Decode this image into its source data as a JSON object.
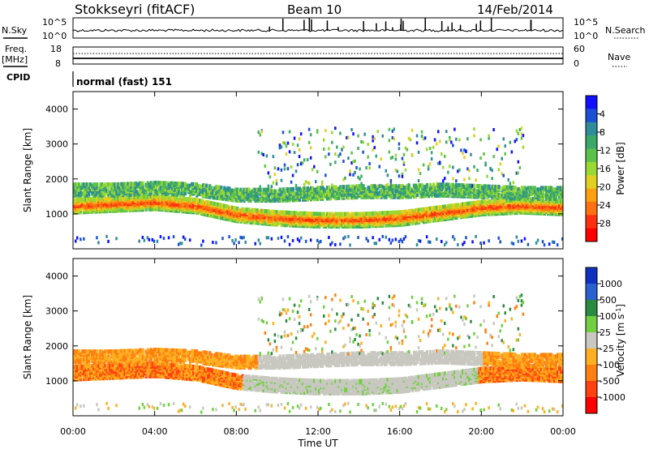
{
  "header": {
    "station": "Stokkseyri (fitACF)",
    "beam": "Beam 10",
    "date": "14/Feb/2014"
  },
  "top_panels": {
    "nsky_label": "N.Sky",
    "nsky_ticks": [
      "10^5",
      "10^0"
    ],
    "nsearch_label": "N.Search",
    "freq_label": "Freq.",
    "freq_unit": "[MHz]",
    "freq_ticks": [
      "18",
      "8"
    ],
    "nave_ticks": [
      "60",
      "0"
    ],
    "nave_label": "Nave",
    "cpid_label": "CPID",
    "cpid_text": "normal (fast) 151"
  },
  "chart_data": [
    {
      "type": "heatmap",
      "title": "",
      "xlabel": "Time UT",
      "ylabel": "Slant Range [km]",
      "x_ticks": [
        "00:00",
        "04:00",
        "08:00",
        "12:00",
        "16:00",
        "20:00",
        "00:00"
      ],
      "x_range_hours": [
        0,
        24
      ],
      "ylim": [
        0,
        4500
      ],
      "y_ticks": [
        "1000",
        "2000",
        "3000",
        "4000"
      ],
      "colorbar": {
        "label": "Power [dB]",
        "ticks": [
          "4",
          "8",
          "12",
          "16",
          "20",
          "24",
          "28"
        ],
        "colors": [
          "#1010ff",
          "#1b4fd8",
          "#2f8c9a",
          "#3aa868",
          "#5bc24a",
          "#9ad832",
          "#e0d020",
          "#ffa010",
          "#ff7010",
          "#ff3010",
          "#ff0000"
        ]
      },
      "echo_bands": [
        {
          "name": "near",
          "t_start": 0,
          "t_end": 24,
          "center_km": [
            1250,
            1300,
            1350,
            1250,
            1000,
            900,
            850,
            850,
            900,
            1050,
            1200,
            1250,
            1200
          ],
          "level_db": 24
        },
        {
          "name": "far",
          "t_start": 0,
          "t_end": 24,
          "center_km": [
            1700,
            1700,
            1750,
            1700,
            1550,
            1550,
            1600,
            1650,
            1650,
            1700,
            1650,
            1600,
            1600
          ],
          "level_db": 10
        }
      ]
    },
    {
      "type": "heatmap",
      "title": "",
      "xlabel": "Time UT",
      "ylabel": "Slant Range [km]",
      "x_ticks": [
        "00:00",
        "04:00",
        "08:00",
        "12:00",
        "16:00",
        "20:00",
        "00:00"
      ],
      "x_range_hours": [
        0,
        24
      ],
      "ylim": [
        0,
        4500
      ],
      "y_ticks": [
        "1000",
        "2000",
        "3000",
        "4000"
      ],
      "colorbar": {
        "label": "Velocity [m s^-1]",
        "ticks": [
          "1000",
          "500",
          "100",
          "25",
          "-25",
          "-100",
          "-500",
          "-1000"
        ],
        "colors": [
          "#1030c0",
          "#2a60d0",
          "#2a8a40",
          "#70d040",
          "#c8c8c0",
          "#ffb020",
          "#ff8010",
          "#ff4010",
          "#ff0000"
        ]
      }
    }
  ]
}
